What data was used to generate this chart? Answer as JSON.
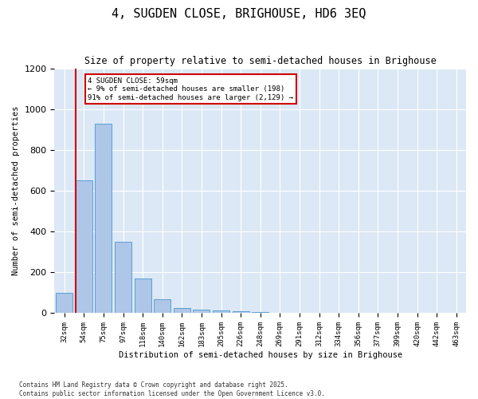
{
  "title": "4, SUGDEN CLOSE, BRIGHOUSE, HD6 3EQ",
  "subtitle": "Size of property relative to semi-detached houses in Brighouse",
  "xlabel": "Distribution of semi-detached houses by size in Brighouse",
  "ylabel": "Number of semi-detached properties",
  "annotation_line1": "4 SUGDEN CLOSE: 59sqm",
  "annotation_line2": "← 9% of semi-detached houses are smaller (198)",
  "annotation_line3": "91% of semi-detached houses are larger (2,129) →",
  "footer_line1": "Contains HM Land Registry data © Crown copyright and database right 2025.",
  "footer_line2": "Contains public sector information licensed under the Open Government Licence v3.0.",
  "bins": [
    "32sqm",
    "54sqm",
    "75sqm",
    "97sqm",
    "118sqm",
    "140sqm",
    "162sqm",
    "183sqm",
    "205sqm",
    "226sqm",
    "248sqm",
    "269sqm",
    "291sqm",
    "312sqm",
    "334sqm",
    "356sqm",
    "377sqm",
    "399sqm",
    "420sqm",
    "442sqm",
    "463sqm"
  ],
  "values": [
    100,
    650,
    930,
    350,
    170,
    70,
    25,
    18,
    15,
    10,
    5,
    2,
    1,
    1,
    0,
    0,
    0,
    0,
    0,
    0,
    0
  ],
  "bar_color": "#aec6e8",
  "bar_edge_color": "#5a9fd4",
  "vline_color": "#cc0000",
  "annotation_box_color": "#cc0000",
  "bg_color": "#dce8f5",
  "ylim": [
    0,
    1200
  ],
  "yticks": [
    0,
    200,
    400,
    600,
    800,
    1000,
    1200
  ]
}
